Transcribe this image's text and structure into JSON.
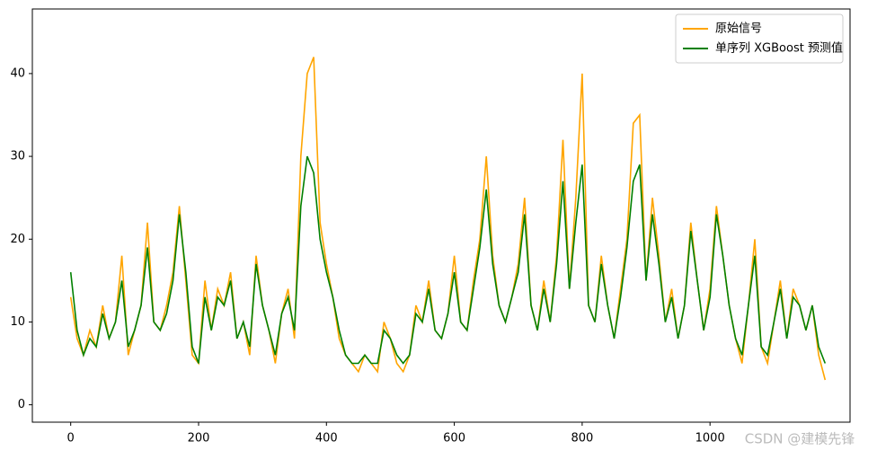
{
  "chart_data": {
    "type": "line",
    "x": [
      0,
      10,
      20,
      30,
      40,
      50,
      60,
      70,
      80,
      90,
      100,
      110,
      120,
      130,
      140,
      150,
      160,
      170,
      180,
      190,
      200,
      210,
      220,
      230,
      240,
      250,
      260,
      270,
      280,
      290,
      300,
      310,
      320,
      330,
      340,
      350,
      360,
      370,
      380,
      390,
      400,
      410,
      420,
      430,
      440,
      450,
      460,
      470,
      480,
      490,
      500,
      510,
      520,
      530,
      540,
      550,
      560,
      570,
      580,
      590,
      600,
      610,
      620,
      630,
      640,
      650,
      660,
      670,
      680,
      690,
      700,
      710,
      720,
      730,
      740,
      750,
      760,
      770,
      780,
      790,
      800,
      810,
      820,
      830,
      840,
      850,
      860,
      870,
      880,
      890,
      900,
      910,
      920,
      930,
      940,
      950,
      960,
      970,
      980,
      990,
      1000,
      1010,
      1020,
      1030,
      1040,
      1050,
      1060,
      1070,
      1080,
      1090,
      1100,
      1110,
      1120,
      1130,
      1140,
      1150,
      1160,
      1170,
      1180
    ],
    "series": [
      {
        "name": "原始信号",
        "color": "#ffa500",
        "values": [
          13,
          8,
          6,
          9,
          7,
          12,
          8,
          10,
          18,
          6,
          9,
          12,
          22,
          10,
          9,
          12,
          16,
          24,
          15,
          6,
          5,
          15,
          9,
          14,
          12,
          16,
          8,
          10,
          6,
          18,
          12,
          9,
          5,
          11,
          14,
          8,
          30,
          40,
          42,
          22,
          17,
          13,
          8,
          6,
          5,
          4,
          6,
          5,
          4,
          10,
          8,
          5,
          4,
          6,
          12,
          10,
          15,
          9,
          8,
          11,
          18,
          10,
          9,
          15,
          20,
          30,
          18,
          12,
          10,
          13,
          17,
          25,
          12,
          9,
          15,
          10,
          18,
          32,
          14,
          25,
          40,
          12,
          10,
          18,
          12,
          8,
          14,
          20,
          34,
          35,
          15,
          25,
          18,
          10,
          14,
          8,
          12,
          22,
          15,
          9,
          14,
          24,
          18,
          12,
          8,
          5,
          12,
          20,
          7,
          5,
          10,
          15,
          8,
          14,
          12,
          9,
          12,
          6,
          3
        ]
      },
      {
        "name": "单序列 XGBoost 预测值",
        "color": "#008000",
        "values": [
          16,
          9,
          6,
          8,
          7,
          11,
          8,
          10,
          15,
          7,
          9,
          12,
          19,
          10,
          9,
          11,
          15,
          23,
          16,
          7,
          5,
          13,
          9,
          13,
          12,
          15,
          8,
          10,
          7,
          17,
          12,
          9,
          6,
          11,
          13,
          9,
          24,
          30,
          28,
          20,
          16,
          13,
          9,
          6,
          5,
          5,
          6,
          5,
          5,
          9,
          8,
          6,
          5,
          6,
          11,
          10,
          14,
          9,
          8,
          11,
          16,
          10,
          9,
          14,
          19,
          26,
          17,
          12,
          10,
          13,
          16,
          23,
          12,
          9,
          14,
          10,
          17,
          27,
          14,
          22,
          29,
          12,
          10,
          17,
          12,
          8,
          13,
          19,
          27,
          29,
          15,
          23,
          17,
          10,
          13,
          8,
          12,
          21,
          15,
          9,
          13,
          23,
          18,
          12,
          8,
          6,
          12,
          18,
          7,
          6,
          10,
          14,
          8,
          13,
          12,
          9,
          12,
          7,
          5
        ]
      }
    ],
    "xlim": [
      -60,
      1219
    ],
    "ylim": [
      -2.1,
      47.8
    ],
    "xticks": [
      0,
      200,
      400,
      600,
      800,
      1000
    ],
    "yticks": [
      0,
      10,
      20,
      30,
      40
    ],
    "grid": false,
    "legend": "upper right",
    "watermark": "CSDN @建模先锋"
  }
}
